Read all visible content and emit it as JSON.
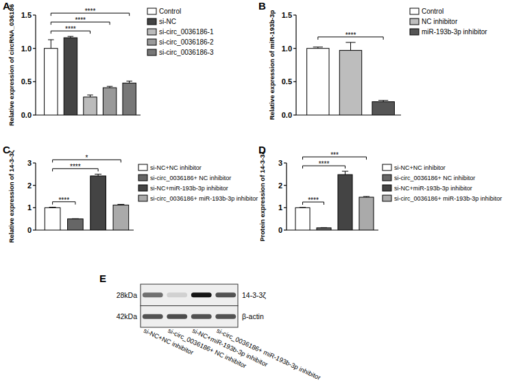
{
  "chart_data": [
    {
      "panel": "A",
      "type": "bar",
      "y_label": "Relative expression of circRNA_036186",
      "categories": [
        "Control",
        "si-NC",
        "si-circ_0036186-1",
        "si-circ_0036186-2",
        "si-circ_0036186-3"
      ],
      "values": [
        1.0,
        1.16,
        0.27,
        0.41,
        0.48
      ],
      "errors": [
        0.13,
        0.02,
        0.03,
        0.02,
        0.03
      ],
      "colors": [
        "#ffffff",
        "#444444",
        "#bbbbbb",
        "#999999",
        "#777777"
      ],
      "ylim": [
        0,
        1.5
      ],
      "yticks": [
        {
          "value": 0,
          "label": "0.0"
        },
        0.5,
        {
          "value": 1,
          "label": "1.0"
        },
        1.5
      ],
      "tick_labels": "y",
      "legend": "right",
      "comparisons": [
        {
          "groups": [
            "Control",
            "si-circ_0036186-1"
          ],
          "label": "****"
        },
        {
          "groups": [
            "Control",
            "si-circ_0036186-2"
          ],
          "label": "****"
        },
        {
          "groups": [
            "Control",
            "si-circ_0036186-3"
          ],
          "label": "****"
        }
      ]
    },
    {
      "panel": "B",
      "type": "bar",
      "y_label": "Relative expression of miR-193b-3p",
      "categories": [
        "Control",
        "NC inhibitor",
        "miR-193b-3p inhibitor"
      ],
      "values": [
        1.0,
        0.97,
        0.2
      ],
      "errors": [
        0.02,
        0.12,
        0.02
      ],
      "colors": [
        "#ffffff",
        "#bdbdbd",
        "#555555"
      ],
      "ylim": [
        0,
        1.5
      ],
      "yticks": [
        {
          "value": 0,
          "label": "0.0"
        },
        0.5,
        {
          "value": 1,
          "label": "1.0"
        },
        1.5
      ],
      "tick_labels": "y",
      "legend": "right",
      "comparisons": [
        {
          "groups": [
            "Control",
            "miR-193b-3p inhibitor"
          ],
          "label": "****"
        }
      ]
    },
    {
      "panel": "C",
      "type": "bar",
      "y_label": "Relative expression of 14-3-3ζ",
      "categories": [
        "si-NC+NC inhibitor",
        "si-circ_0036186+ NC inhibitor",
        "si-NC+miR-193b-3p inhibitor",
        "si-circ_0036186+ miR-193b-3p inhibitor"
      ],
      "values": [
        1.0,
        0.5,
        2.42,
        1.12
      ],
      "errors": [
        0.02,
        0.01,
        0.08,
        0.03
      ],
      "colors": [
        "#ffffff",
        "#666666",
        "#444444",
        "#aaaaaa"
      ],
      "ylim": [
        0,
        3
      ],
      "yticks": [
        0,
        1,
        2,
        3
      ],
      "tick_labels": "y",
      "legend": "right",
      "comparisons": [
        {
          "groups": [
            "si-NC+NC inhibitor",
            "si-circ_0036186+ NC inhibitor"
          ],
          "label": "****"
        },
        {
          "groups": [
            "si-NC+NC inhibitor",
            "si-NC+miR-193b-3p inhibitor"
          ],
          "label": "****"
        },
        {
          "groups": [
            "si-NC+NC inhibitor",
            "si-circ_0036186+ miR-193b-3p inhibitor"
          ],
          "label": "*"
        }
      ]
    },
    {
      "panel": "D",
      "type": "bar",
      "y_label": "Protein expression of 14-3-3ζ",
      "categories": [
        "si-NC+NC inhibitor",
        "si-circ_0036186+ NC inhibitor",
        "si-NC+miR-193b-3p inhibitor",
        "si-circ_0036186+ miR-193b-3p inhibitor"
      ],
      "values": [
        1.0,
        0.1,
        2.48,
        1.47
      ],
      "errors": [
        0.01,
        0.01,
        0.15,
        0.03
      ],
      "colors": [
        "#ffffff",
        "#666666",
        "#444444",
        "#aaaaaa"
      ],
      "ylim": [
        0,
        3
      ],
      "yticks": [
        0,
        1,
        2,
        3
      ],
      "tick_labels": "y",
      "legend": "right",
      "comparisons": [
        {
          "groups": [
            "si-NC+NC inhibitor",
            "si-circ_0036186+ NC inhibitor"
          ],
          "label": "****"
        },
        {
          "groups": [
            "si-NC+NC inhibitor",
            "si-NC+miR-193b-3p inhibitor"
          ],
          "label": "****"
        },
        {
          "groups": [
            "si-NC+NC inhibitor",
            "si-circ_0036186+ miR-193b-3p inhibitor"
          ],
          "label": "***"
        }
      ]
    }
  ],
  "blot": {
    "panel": "E",
    "lanes": [
      "si-NC+NC inhibitor",
      "si-circ_0036186+ NC inhibitor",
      "si-NC+miR-193b-3p inhibitor",
      "si-circ_0036186+ miR-193b-3p inhibitor"
    ],
    "bands": [
      {
        "size": "28kDa",
        "name": "14-3-3ζ",
        "intensity": [
          0.55,
          0.08,
          1.0,
          0.7
        ]
      },
      {
        "size": "42kDa",
        "name": "β-actin",
        "intensity": [
          0.7,
          0.72,
          0.7,
          0.7
        ]
      }
    ]
  }
}
